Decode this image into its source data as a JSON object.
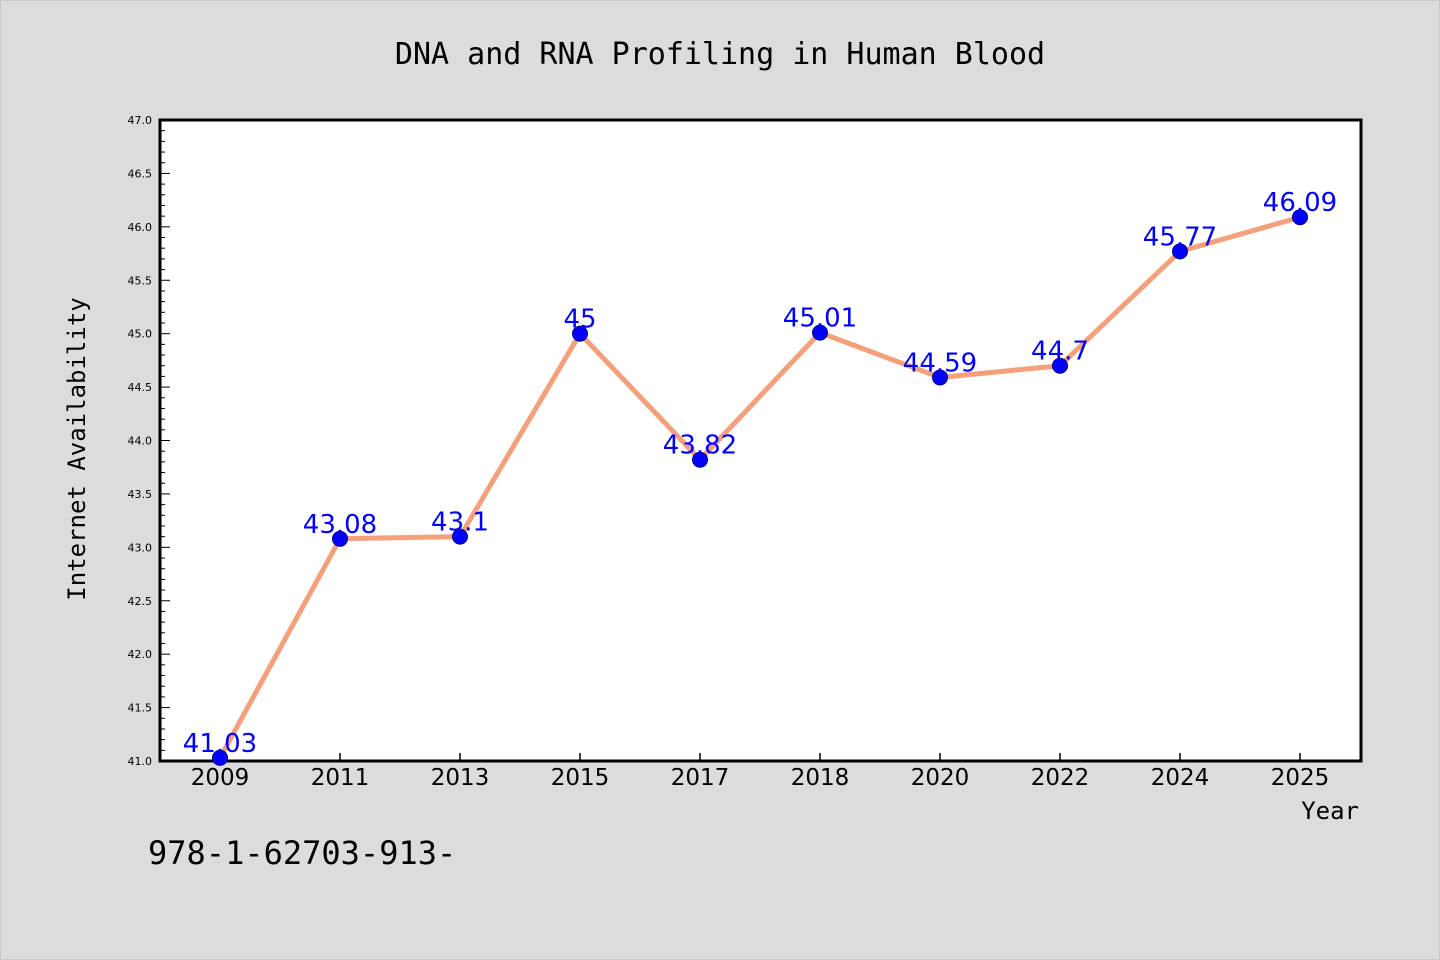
{
  "chart_data": {
    "type": "line",
    "title": "DNA and RNA Profiling in Human Blood",
    "xlabel": "Year",
    "ylabel": "Internet Availability",
    "categories": [
      "2009",
      "2011",
      "2013",
      "2015",
      "2017",
      "2018",
      "2020",
      "2022",
      "2024",
      "2025"
    ],
    "series": [
      {
        "values": [
          41.03,
          43.08,
          43.1,
          45,
          43.82,
          45.01,
          44.59,
          44.7,
          45.77,
          46.09
        ],
        "labels": [
          "41.03",
          "43.08",
          "43.1",
          "45",
          "43.82",
          "45.01",
          "44.59",
          "44.7",
          "45.77",
          "46.09"
        ],
        "line_color": "#f4a07a",
        "marker_color": "#0000ff"
      }
    ],
    "ylim": [
      41.0,
      47.0
    ],
    "yticks": [
      "41.0",
      "41.5",
      "42.0",
      "42.5",
      "43.0",
      "43.5",
      "44.0",
      "44.5",
      "45.0",
      "45.5",
      "46.0",
      "46.5",
      "47.0"
    ],
    "grid": false,
    "label_color": "#0000ff"
  },
  "footer_text": "978-1-62703-913-",
  "colors": {
    "background": "#dcdcdc",
    "plot_background": "#ffffff"
  }
}
